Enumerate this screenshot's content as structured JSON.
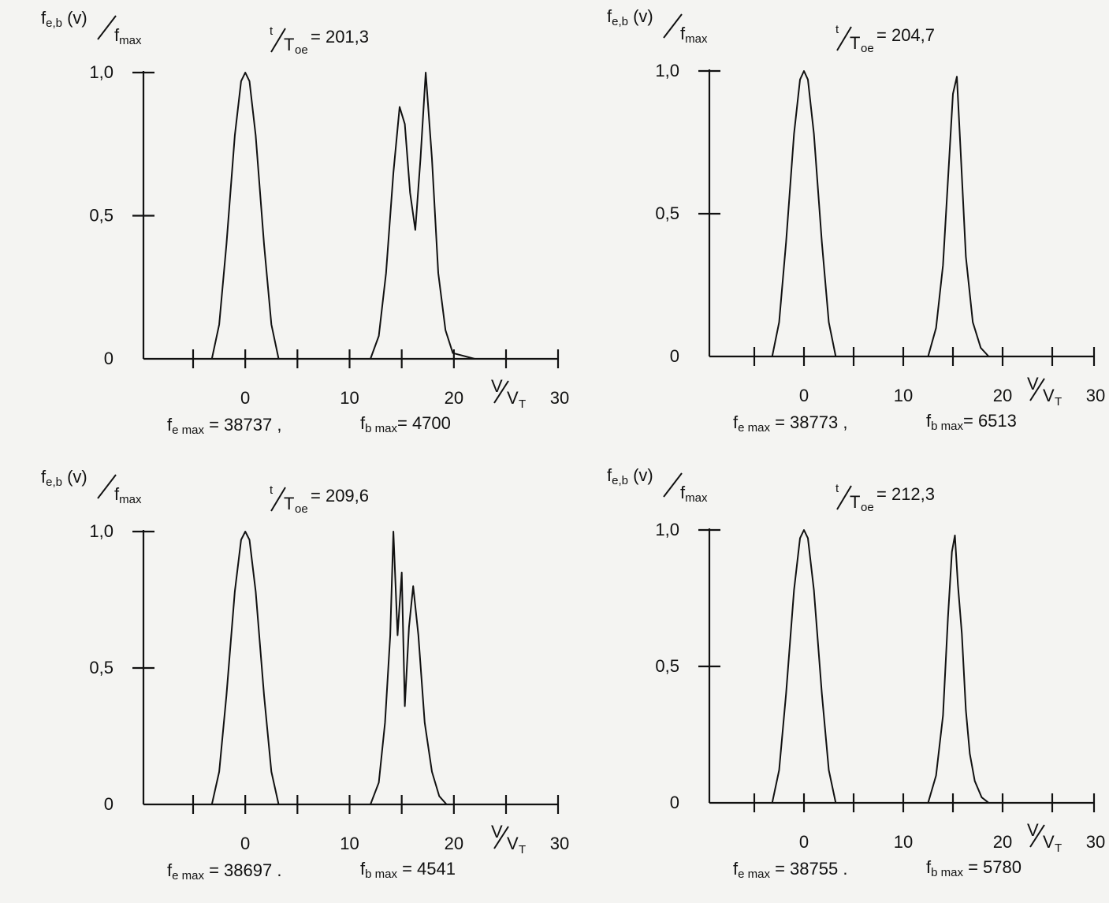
{
  "chart_data": [
    {
      "type": "line",
      "time_label": {
        "t": "t",
        "den": "T",
        "den_sub": "oe",
        "value": "= 201,3"
      },
      "ylabel": {
        "num": "f",
        "num_sub": "e,b",
        "arg": " (v)",
        "den": "f",
        "den_sub": "max"
      },
      "xlabel": {
        "num": "V",
        "den": "V",
        "den_sub": "T"
      },
      "yticks": [
        "0",
        "0,5",
        "1,0"
      ],
      "xticks": [
        "0",
        "10",
        "20",
        "30"
      ],
      "xlim": [
        -10,
        30
      ],
      "ylim": [
        0,
        1.0
      ],
      "series": [
        {
          "x": [
            -10,
            -3.2,
            -2.5,
            -1.8,
            -1.0,
            -0.4,
            0,
            0.4,
            1.0,
            1.8,
            2.5,
            3.2,
            12,
            12.8,
            13.5,
            14.2,
            14.8,
            15.3,
            15.8,
            16.3,
            16.8,
            17.3,
            17.9,
            18.5,
            19.2,
            19.9,
            22,
            30
          ],
          "y": [
            0,
            0,
            0.12,
            0.4,
            0.78,
            0.97,
            1.0,
            0.97,
            0.78,
            0.4,
            0.12,
            0,
            0,
            0.08,
            0.3,
            0.65,
            0.88,
            0.82,
            0.58,
            0.45,
            0.7,
            1.0,
            0.7,
            0.3,
            0.1,
            0.02,
            0,
            0
          ]
        }
      ],
      "footer": {
        "fe_label": "f",
        "fe_sub": "e max",
        "fe_value": " = 38737 ,",
        "fb_label": "f",
        "fb_sub": "b max",
        "fb_value": "= 4700"
      }
    },
    {
      "type": "line",
      "time_label": {
        "t": "t",
        "den": "T",
        "den_sub": "oe",
        "value": "= 204,7"
      },
      "ylabel": {
        "num": "f",
        "num_sub": "e,b",
        "arg": " (v)",
        "den": "f",
        "den_sub": "max"
      },
      "xlabel": {
        "num": "V",
        "den": "V",
        "den_sub": "T"
      },
      "yticks": [
        "0",
        "0,5",
        "1,0"
      ],
      "xticks": [
        "0",
        "10",
        "20",
        "30"
      ],
      "xlim": [
        -10,
        30
      ],
      "ylim": [
        0,
        1.0
      ],
      "series": [
        {
          "x": [
            -10,
            -3.2,
            -2.5,
            -1.8,
            -1.0,
            -0.4,
            0,
            0.4,
            1.0,
            1.8,
            2.5,
            3.2,
            12.5,
            13.3,
            14.0,
            14.6,
            15.0,
            15.4,
            15.8,
            16.3,
            17.0,
            17.8,
            18.6,
            22,
            30
          ],
          "y": [
            0,
            0,
            0.12,
            0.4,
            0.78,
            0.97,
            1.0,
            0.97,
            0.78,
            0.4,
            0.12,
            0,
            0,
            0.1,
            0.32,
            0.68,
            0.92,
            0.98,
            0.7,
            0.35,
            0.12,
            0.03,
            0,
            0,
            0
          ]
        }
      ],
      "footer": {
        "fe_label": "f",
        "fe_sub": "e max",
        "fe_value": " = 38773 ,",
        "fb_label": "f",
        "fb_sub": "b max",
        "fb_value": "= 6513"
      }
    },
    {
      "type": "line",
      "time_label": {
        "t": "t",
        "den": "T",
        "den_sub": "oe",
        "value": "= 209,6"
      },
      "ylabel": {
        "num": "f",
        "num_sub": "e,b",
        "arg": " (v)",
        "den": "f",
        "den_sub": "max"
      },
      "xlabel": {
        "num": "V",
        "den": "V",
        "den_sub": "T"
      },
      "yticks": [
        "0",
        "0,5",
        "1,0"
      ],
      "xticks": [
        "0",
        "10",
        "20",
        "30"
      ],
      "xlim": [
        -10,
        30
      ],
      "ylim": [
        0,
        1.0
      ],
      "series": [
        {
          "x": [
            -10,
            -3.2,
            -2.5,
            -1.8,
            -1.0,
            -0.4,
            0,
            0.4,
            1.0,
            1.8,
            2.5,
            3.2,
            12,
            12.8,
            13.4,
            13.9,
            14.2,
            14.6,
            15.0,
            15.3,
            15.7,
            16.1,
            16.6,
            17.2,
            17.9,
            18.6,
            19.3,
            22,
            30
          ],
          "y": [
            0,
            0,
            0.12,
            0.4,
            0.78,
            0.97,
            1.0,
            0.97,
            0.78,
            0.4,
            0.12,
            0,
            0,
            0.08,
            0.3,
            0.62,
            1.0,
            0.62,
            0.85,
            0.36,
            0.65,
            0.8,
            0.62,
            0.3,
            0.12,
            0.03,
            0,
            0,
            0
          ]
        }
      ],
      "footer": {
        "fe_label": "f",
        "fe_sub": "e max",
        "fe_value": " = 38697 .",
        "fb_label": "f",
        "fb_sub": "b max",
        "fb_value": " = 4541"
      }
    },
    {
      "type": "line",
      "time_label": {
        "t": "t",
        "den": "T",
        "den_sub": "oe",
        "value": "= 212,3"
      },
      "ylabel": {
        "num": "f",
        "num_sub": "e,b",
        "arg": " (v)",
        "den": "f",
        "den_sub": "max"
      },
      "xlabel": {
        "num": "V",
        "den": "V",
        "den_sub": "T"
      },
      "yticks": [
        "0",
        "0,5",
        "1,0"
      ],
      "xticks": [
        "0",
        "10",
        "20",
        "30"
      ],
      "xlim": [
        -10,
        30
      ],
      "ylim": [
        0,
        1.0
      ],
      "series": [
        {
          "x": [
            -10,
            -3.2,
            -2.5,
            -1.8,
            -1.0,
            -0.4,
            0,
            0.4,
            1.0,
            1.8,
            2.5,
            3.2,
            12.5,
            13.3,
            14.0,
            14.5,
            14.9,
            15.2,
            15.5,
            15.9,
            16.3,
            16.7,
            17.2,
            17.9,
            18.6,
            22,
            30
          ],
          "y": [
            0,
            0,
            0.12,
            0.4,
            0.78,
            0.97,
            1.0,
            0.97,
            0.78,
            0.4,
            0.12,
            0,
            0,
            0.1,
            0.32,
            0.68,
            0.92,
            0.98,
            0.8,
            0.62,
            0.34,
            0.18,
            0.08,
            0.02,
            0,
            0,
            0
          ]
        }
      ],
      "footer": {
        "fe_label": "f",
        "fe_sub": "e max",
        "fe_value": " = 38755 .",
        "fb_label": "f",
        "fb_sub": "b max",
        "fb_value": " = 5780"
      }
    }
  ]
}
